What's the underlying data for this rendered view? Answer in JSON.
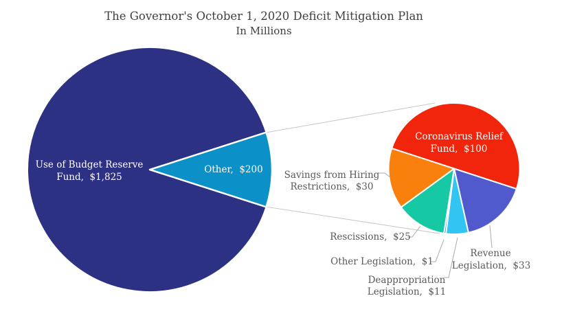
{
  "chart_data": {
    "type": "pie",
    "variant": "pie-of-pie",
    "title": "The Governor's October 1, 2020 Deficit Mitigation Plan",
    "subtitle": "In Millions",
    "legend": "none",
    "main_pie": {
      "total": 2025,
      "slices": [
        {
          "label": "Use of Budget Reserve Fund",
          "value": 1825,
          "color": "#2c3184"
        },
        {
          "label": "Other",
          "value": 200,
          "color": "#0c90c8"
        }
      ]
    },
    "secondary_pie": {
      "total": 200,
      "start_angle_deg": 288,
      "slices": [
        {
          "label": "Coronavirus Relief Fund",
          "value": 100,
          "color": "#f1250b"
        },
        {
          "label": "Revenue Legislation",
          "value": 33,
          "color": "#515acc"
        },
        {
          "label": "Deappropriation Legislation",
          "value": 11,
          "color": "#33c5f2"
        },
        {
          "label": "Other Legislation",
          "value": 1,
          "color": "#3a7bd5"
        },
        {
          "label": "Rescissions",
          "value": 25,
          "color": "#16c8a4"
        },
        {
          "label": "Savings from Hiring Restrictions",
          "value": 30,
          "color": "#f9800d"
        }
      ]
    },
    "labels": {
      "budget_reserve_line1": "Use of Budget Reserve",
      "budget_reserve_line2": "Fund,  $1,825",
      "other": "Other,  $200",
      "coronavirus_line1": "Coronavirus Relief",
      "coronavirus_line2": "Fund,  $100",
      "savings_line1": "Savings from Hiring",
      "savings_line2": "Restrictions,  $30",
      "rescissions": "Rescissions,  $25",
      "other_legislation": "Other Legislation,  $1",
      "deappropriation_line1": "Deappropriation",
      "deappropriation_line2": "Legislation,  $11",
      "revenue_line1": "Revenue",
      "revenue_line2": "Legislation,  $33"
    },
    "colors": {
      "title_text": "#3f3f3f",
      "outside_label_text": "#595959",
      "inside_label_text": "#ffffff",
      "connector_line": "#c9c9c9",
      "leader_line": "#a9a9a9",
      "background": "#ffffff"
    }
  }
}
